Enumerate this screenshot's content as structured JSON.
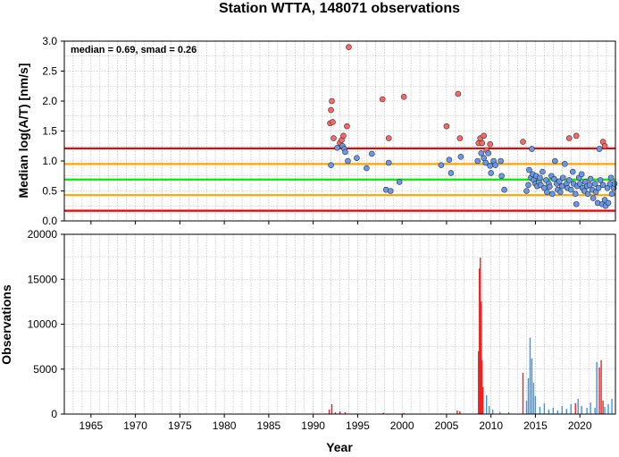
{
  "chart_data": [
    {
      "type": "scatter",
      "title": "Station WTTA, 148071 observations",
      "xlabel": "Year",
      "ylabel": "Median log(A/T) [nm/s]",
      "annotation": "median = 0.69, smad = 0.26",
      "xlim": [
        1962,
        2024
      ],
      "ylim": [
        0,
        3
      ],
      "x_ticks": [
        1965,
        1970,
        1975,
        1980,
        1985,
        1990,
        1995,
        2000,
        2005,
        2010,
        2015,
        2020
      ],
      "y_ticks": [
        "0.0",
        "0.5",
        "1.0",
        "1.5",
        "2.0",
        "2.5",
        "3.0"
      ],
      "grid": true,
      "reference_lines": [
        {
          "value": 0.69,
          "color": "#00ee00"
        },
        {
          "value": 0.95,
          "color": "#ffa500"
        },
        {
          "value": 0.43,
          "color": "#ffa500"
        },
        {
          "value": 1.21,
          "color": "#ee0000"
        },
        {
          "value": 0.17,
          "color": "#ee0000"
        }
      ],
      "series": [
        {
          "color": "#ff6666",
          "points": [
            [
              1991.9,
              1.63
            ],
            [
              1992.0,
              1.85
            ],
            [
              1992.1,
              2.0
            ],
            [
              1992.2,
              1.65
            ],
            [
              1992.3,
              1.38
            ],
            [
              1993.0,
              1.3
            ],
            [
              1993.2,
              1.35
            ],
            [
              1993.4,
              1.42
            ],
            [
              1993.8,
              1.58
            ],
            [
              1994.0,
              2.9
            ],
            [
              1997.8,
              2.03
            ],
            [
              1998.5,
              1.38
            ],
            [
              2000.2,
              2.07
            ],
            [
              2005.0,
              1.58
            ],
            [
              2006.3,
              2.12
            ],
            [
              2006.5,
              1.38
            ],
            [
              2008.6,
              1.3
            ],
            [
              2008.8,
              1.38
            ],
            [
              2009.0,
              1.3
            ],
            [
              2009.2,
              1.42
            ],
            [
              2009.5,
              1.18
            ],
            [
              2009.9,
              1.28
            ],
            [
              2013.6,
              1.32
            ],
            [
              2018.8,
              1.38
            ],
            [
              2019.6,
              1.42
            ],
            [
              2022.6,
              1.32
            ],
            [
              2022.8,
              1.25
            ]
          ]
        },
        {
          "color": "#6699ee",
          "points": [
            [
              1992.0,
              0.93
            ],
            [
              1992.7,
              1.22
            ],
            [
              1993.3,
              1.25
            ],
            [
              1993.5,
              1.2
            ],
            [
              1993.6,
              1.15
            ],
            [
              1993.9,
              1.0
            ],
            [
              1994.9,
              1.05
            ],
            [
              1996.0,
              0.88
            ],
            [
              1996.6,
              1.12
            ],
            [
              1998.2,
              0.52
            ],
            [
              1998.5,
              0.97
            ],
            [
              1998.7,
              0.5
            ],
            [
              1999.7,
              0.65
            ],
            [
              2004.4,
              0.93
            ],
            [
              2005.3,
              1.02
            ],
            [
              2005.5,
              0.8
            ],
            [
              2006.6,
              1.07
            ],
            [
              2008.5,
              1.0
            ],
            [
              2008.9,
              1.13
            ],
            [
              2009.2,
              1.05
            ],
            [
              2009.4,
              0.97
            ],
            [
              2009.7,
              1.13
            ],
            [
              2009.9,
              0.92
            ],
            [
              2010.0,
              0.8
            ],
            [
              2010.3,
              1.0
            ],
            [
              2010.5,
              0.93
            ],
            [
              2011.1,
              1.0
            ],
            [
              2011.2,
              0.75
            ],
            [
              2011.5,
              0.52
            ],
            [
              2014.0,
              0.5
            ],
            [
              2014.2,
              0.6
            ],
            [
              2014.3,
              0.85
            ],
            [
              2014.5,
              0.72
            ],
            [
              2014.6,
              1.2
            ],
            [
              2014.7,
              0.78
            ],
            [
              2014.8,
              0.68
            ],
            [
              2015.0,
              0.62
            ],
            [
              2015.1,
              0.75
            ],
            [
              2015.2,
              0.58
            ],
            [
              2015.4,
              0.65
            ],
            [
              2015.5,
              0.72
            ],
            [
              2015.6,
              0.6
            ],
            [
              2015.8,
              0.82
            ],
            [
              2016.0,
              0.55
            ],
            [
              2016.2,
              0.68
            ],
            [
              2016.3,
              0.48
            ],
            [
              2016.5,
              0.62
            ],
            [
              2016.6,
              0.57
            ],
            [
              2016.8,
              0.75
            ],
            [
              2016.9,
              0.45
            ],
            [
              2017.1,
              0.7
            ],
            [
              2017.2,
              1.0
            ],
            [
              2017.4,
              0.62
            ],
            [
              2017.5,
              0.52
            ],
            [
              2017.7,
              0.66
            ],
            [
              2017.8,
              0.48
            ],
            [
              2018.0,
              0.58
            ],
            [
              2018.1,
              0.72
            ],
            [
              2018.3,
              0.95
            ],
            [
              2018.5,
              0.62
            ],
            [
              2018.6,
              0.55
            ],
            [
              2018.8,
              0.68
            ],
            [
              2019.0,
              0.52
            ],
            [
              2019.2,
              0.82
            ],
            [
              2019.3,
              0.62
            ],
            [
              2019.5,
              0.45
            ],
            [
              2019.6,
              0.28
            ],
            [
              2019.7,
              0.58
            ],
            [
              2019.9,
              0.72
            ],
            [
              2020.0,
              0.62
            ],
            [
              2020.2,
              0.78
            ],
            [
              2020.3,
              0.55
            ],
            [
              2020.5,
              0.5
            ],
            [
              2020.6,
              0.65
            ],
            [
              2020.8,
              0.58
            ],
            [
              2020.9,
              0.45
            ],
            [
              2021.1,
              0.6
            ],
            [
              2021.2,
              0.7
            ],
            [
              2021.4,
              0.52
            ],
            [
              2021.5,
              0.38
            ],
            [
              2021.7,
              0.62
            ],
            [
              2021.8,
              0.48
            ],
            [
              2022.0,
              0.3
            ],
            [
              2022.1,
              0.55
            ],
            [
              2022.2,
              1.2
            ],
            [
              2022.3,
              0.68
            ],
            [
              2022.5,
              0.28
            ],
            [
              2022.6,
              0.6
            ],
            [
              2022.8,
              0.35
            ],
            [
              2022.9,
              0.25
            ],
            [
              2023.1,
              0.55
            ],
            [
              2023.2,
              0.3
            ],
            [
              2023.4,
              0.62
            ],
            [
              2023.5,
              0.72
            ],
            [
              2023.6,
              0.45
            ],
            [
              2023.8,
              0.55
            ],
            [
              2023.9,
              0.62
            ]
          ]
        }
      ]
    },
    {
      "type": "bar",
      "xlabel": "Year",
      "ylabel": "Observations",
      "xlim": [
        1962,
        2024
      ],
      "ylim": [
        0,
        20000
      ],
      "x_ticks": [
        1965,
        1970,
        1975,
        1980,
        1985,
        1990,
        1995,
        2000,
        2005,
        2010,
        2015,
        2020
      ],
      "y_ticks": [
        "0",
        "5000",
        "10000",
        "15000",
        "20000"
      ],
      "grid": true,
      "series": [
        {
          "color": "#ee2222",
          "bars": [
            [
              1991.8,
              500
            ],
            [
              1992.1,
              1100
            ],
            [
              1992.5,
              200
            ],
            [
              1993.0,
              300
            ],
            [
              1993.6,
              200
            ],
            [
              1997.9,
              150
            ],
            [
              2000.2,
              120
            ],
            [
              2006.2,
              400
            ],
            [
              2006.5,
              300
            ],
            [
              2008.6,
              7000
            ],
            [
              2008.7,
              16200
            ],
            [
              2008.8,
              17400
            ],
            [
              2008.9,
              12500
            ],
            [
              2009.0,
              6000
            ],
            [
              2009.1,
              3000
            ],
            [
              2013.6,
              4600
            ],
            [
              2019.5,
              1200
            ],
            [
              2022.2,
              5200
            ],
            [
              2022.4,
              6000
            ],
            [
              2022.6,
              1500
            ]
          ]
        },
        {
          "color": "#3399ee",
          "bars": [
            [
              2009.5,
              2100
            ],
            [
              2009.8,
              900
            ],
            [
              2010.2,
              500
            ],
            [
              2011.0,
              250
            ],
            [
              2012.0,
              200
            ],
            [
              2014.0,
              1500
            ],
            [
              2014.2,
              4000
            ],
            [
              2014.4,
              8500
            ],
            [
              2014.6,
              6200
            ],
            [
              2014.8,
              3500
            ],
            [
              2015.0,
              2000
            ],
            [
              2015.5,
              800
            ],
            [
              2016.0,
              1200
            ],
            [
              2016.5,
              500
            ],
            [
              2017.0,
              700
            ],
            [
              2017.5,
              400
            ],
            [
              2018.0,
              900
            ],
            [
              2018.5,
              600
            ],
            [
              2019.0,
              1100
            ],
            [
              2019.8,
              1700
            ],
            [
              2020.2,
              900
            ],
            [
              2020.8,
              700
            ],
            [
              2021.2,
              1300
            ],
            [
              2021.7,
              700
            ],
            [
              2021.9,
              5800
            ],
            [
              2022.8,
              800
            ],
            [
              2023.2,
              1100
            ],
            [
              2023.6,
              1700
            ]
          ]
        }
      ]
    }
  ]
}
